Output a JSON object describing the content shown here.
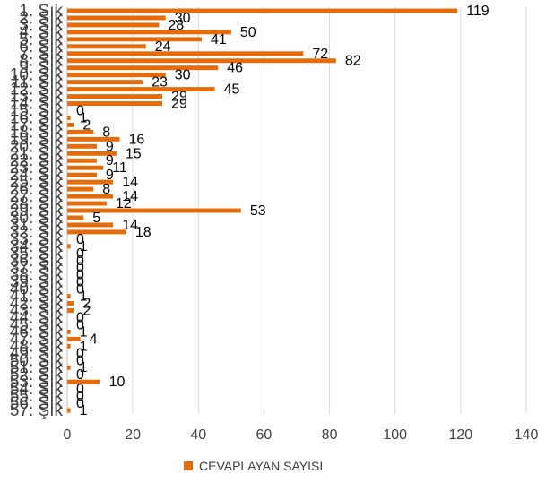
{
  "chart_data": {
    "type": "bar",
    "orientation": "horizontal",
    "categories": [
      "1. Şık",
      "2. Şık",
      "3. Şık",
      "4. Şık",
      "5. Şık",
      "6. Şık",
      "7. Şık",
      "8. Şık",
      "9. Şık",
      "10. Şık",
      "11. Şık",
      "12. Şık",
      "13. Şık",
      "14. Şık",
      "15. Şık",
      "16. Şık",
      "17. Şık",
      "18. Şık",
      "19. Şık",
      "20. Şık",
      "21. Şık",
      "22. Şık",
      "23. Şık",
      "24. Şık",
      "25. Şık",
      "26. Şık",
      "27. Şık",
      "28. Şık",
      "29. Şık",
      "30. Şık",
      "31. Şık",
      "32. Şık",
      "33. Şık",
      "34. Şık",
      "35. Şık",
      "36. Şık",
      "37. Şık",
      "38. Şık",
      "39. Şık",
      "40. Şık",
      "41. Şık",
      "42. Şık",
      "43. Şık",
      "44. Şık",
      "45. Şık",
      "46. Şık",
      "47. Şık",
      "48. Şık",
      "49. Şık",
      "50. Şık",
      "51. Şık",
      "52. Şık",
      "53. Şık",
      "54. Şık",
      "55. Şık",
      "56. Şık",
      "57. Şık"
    ],
    "series": [
      {
        "name": "CEVAPLAYAN SAYISI",
        "values": [
          119,
          30,
          28,
          50,
          41,
          24,
          72,
          82,
          46,
          30,
          23,
          45,
          29,
          29,
          0,
          1,
          2,
          8,
          16,
          9,
          15,
          9,
          11,
          9,
          14,
          8,
          14,
          12,
          53,
          5,
          14,
          18,
          0,
          1,
          0,
          0,
          0,
          0,
          0,
          0,
          1,
          2,
          2,
          0,
          0,
          1,
          4,
          1,
          0,
          0,
          1,
          0,
          10,
          0,
          0,
          0,
          1
        ]
      }
    ],
    "xlim": [
      0,
      140
    ],
    "xticks": [
      0,
      20,
      40,
      60,
      80,
      100,
      120,
      140
    ],
    "gridlines": true,
    "legend_position": "bottom",
    "colors": {
      "bar": "#E46C0A",
      "grid": "#D9D9D9",
      "axis": "#BFBFBF",
      "text": "#404040"
    }
  }
}
